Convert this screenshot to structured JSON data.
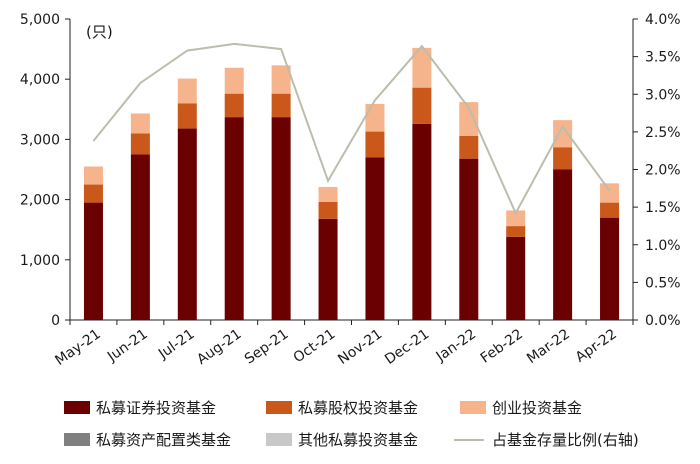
{
  "chart_data": {
    "type": "bar",
    "stacked": true,
    "unit_label": "(只)",
    "categories": [
      "May-21",
      "Jun-21",
      "Jul-21",
      "Aug-21",
      "Sep-21",
      "Oct-21",
      "Nov-21",
      "Dec-21",
      "Jan-22",
      "Feb-22",
      "Mar-22",
      "Apr-22"
    ],
    "y_left": {
      "min": 0,
      "max": 5000,
      "ticks": [
        "0",
        "1,000",
        "2,000",
        "3,000",
        "4,000",
        "5,000"
      ]
    },
    "y_right": {
      "min": 0,
      "max": 4.0,
      "ticks": [
        "0.0%",
        "0.5%",
        "1.0%",
        "1.5%",
        "2.0%",
        "2.5%",
        "3.0%",
        "3.5%",
        "4.0%"
      ]
    },
    "series": [
      {
        "name": "私募证券投资基金",
        "color": "#6b0000",
        "values": [
          1950,
          2750,
          3180,
          3370,
          3370,
          1680,
          2700,
          3260,
          2680,
          1380,
          2500,
          1700
        ]
      },
      {
        "name": "私募股权投资基金",
        "color": "#c9581a",
        "values": [
          300,
          350,
          420,
          390,
          390,
          280,
          430,
          600,
          380,
          180,
          370,
          250
        ]
      },
      {
        "name": "创业投资基金",
        "color": "#f5b48c",
        "values": [
          300,
          330,
          410,
          430,
          470,
          250,
          460,
          660,
          560,
          260,
          450,
          320
        ]
      },
      {
        "name": "私募资产配置类基金",
        "color": "#808080",
        "values": [
          0,
          0,
          0,
          0,
          0,
          0,
          0,
          0,
          0,
          0,
          0,
          0
        ]
      },
      {
        "name": "其他私募投资基金",
        "color": "#c8c8c8",
        "values": [
          0,
          0,
          0,
          0,
          0,
          0,
          0,
          0,
          0,
          0,
          0,
          0
        ]
      }
    ],
    "line_series": {
      "name": "占基金存量比例(右轴)",
      "color": "#bdbdae",
      "axis": "right",
      "values": [
        2.38,
        3.15,
        3.58,
        3.67,
        3.6,
        1.85,
        2.92,
        3.64,
        2.82,
        1.42,
        2.57,
        1.72
      ]
    },
    "legend_position": "bottom",
    "grid": false
  }
}
